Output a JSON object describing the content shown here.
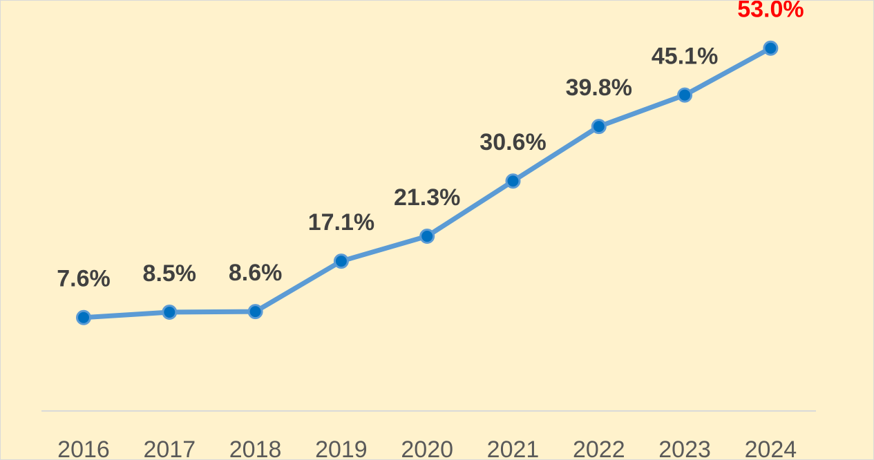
{
  "chart_data": {
    "type": "line",
    "title": "",
    "xlabel": "",
    "ylabel": "",
    "categories": [
      "2016",
      "2017",
      "2018",
      "2019",
      "2020",
      "2021",
      "2022",
      "2023",
      "2024"
    ],
    "series": [
      {
        "name": "",
        "values": [
          7.6,
          8.5,
          8.6,
          17.1,
          21.3,
          30.6,
          39.8,
          45.1,
          53.0
        ]
      }
    ],
    "data_labels": [
      "7.6%",
      "8.5%",
      "8.6%",
      "17.1%",
      "21.3%",
      "30.6%",
      "39.8%",
      "45.1%",
      "53.0%"
    ],
    "highlight_index": 8,
    "ylim": [
      0,
      55
    ],
    "grid": false,
    "legend": "none"
  },
  "colors": {
    "background": "#fff2cc",
    "line": "#5b9bd5",
    "marker_fill": "#0070c0",
    "marker_stroke": "#5b9bd5",
    "label_text": "#404040",
    "highlight_label": "#ff0000",
    "axis_line": "#d9d9d9",
    "tick_text": "#595959"
  }
}
